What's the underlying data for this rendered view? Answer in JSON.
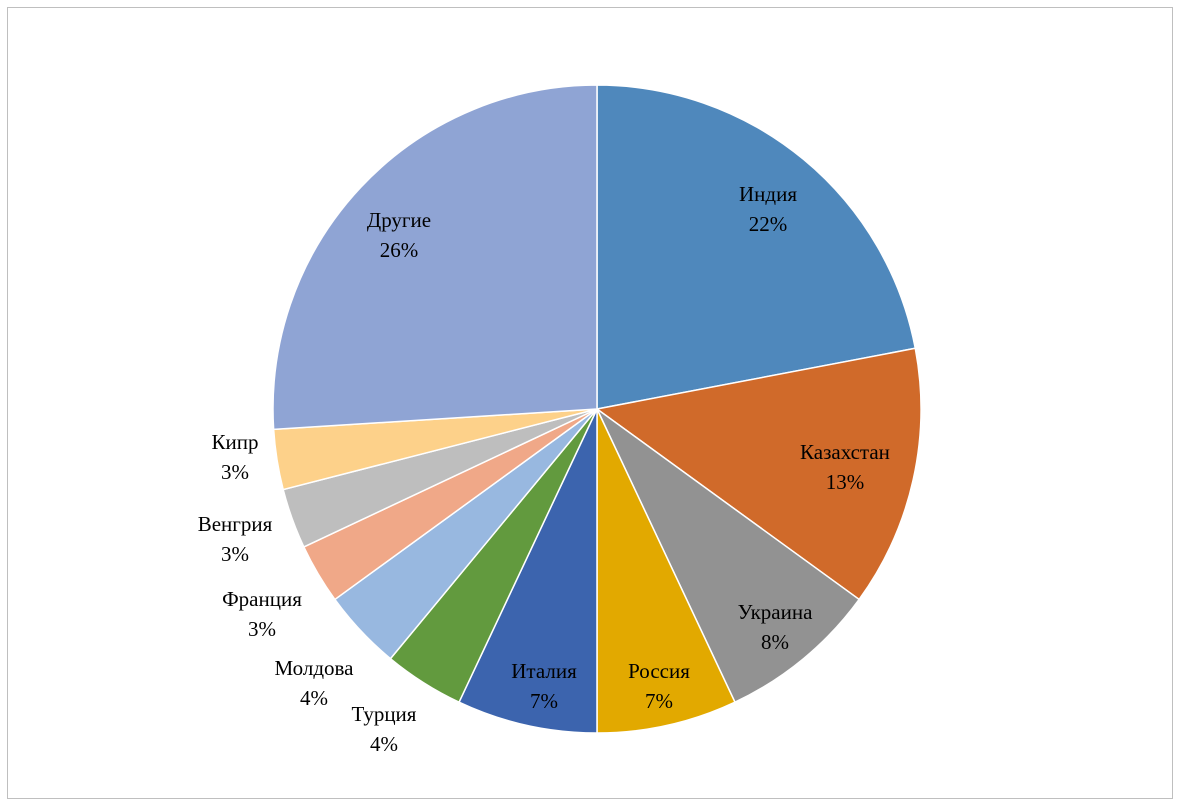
{
  "chart_data": {
    "type": "pie",
    "start_angle_deg": 0,
    "direction": "clockwise",
    "label_format": "{name}\n{percent}",
    "slices": [
      {
        "name": "Индия",
        "value": 22,
        "percent": "22%",
        "color": "#4f88bc"
      },
      {
        "name": "Казахстан",
        "value": 13,
        "percent": "13%",
        "color": "#d06a2a"
      },
      {
        "name": "Украина",
        "value": 8,
        "percent": "8%",
        "color": "#929292"
      },
      {
        "name": "Россия",
        "value": 7,
        "percent": "7%",
        "color": "#e2a900"
      },
      {
        "name": "Италия",
        "value": 7,
        "percent": "7%",
        "color": "#3c64ae"
      },
      {
        "name": "Турция",
        "value": 4,
        "percent": "4%",
        "color": "#629a3e"
      },
      {
        "name": "Молдова",
        "value": 4,
        "percent": "4%",
        "color": "#98b8e0"
      },
      {
        "name": "Франция",
        "value": 3,
        "percent": "3%",
        "color": "#f0a888"
      },
      {
        "name": "Венгрия",
        "value": 3,
        "percent": "3%",
        "color": "#bebebe"
      },
      {
        "name": "Кипр",
        "value": 3,
        "percent": "3%",
        "color": "#fdd18a"
      },
      {
        "name": "Другие",
        "value": 26,
        "percent": "26%",
        "color": "#8fa4d4"
      }
    ]
  }
}
